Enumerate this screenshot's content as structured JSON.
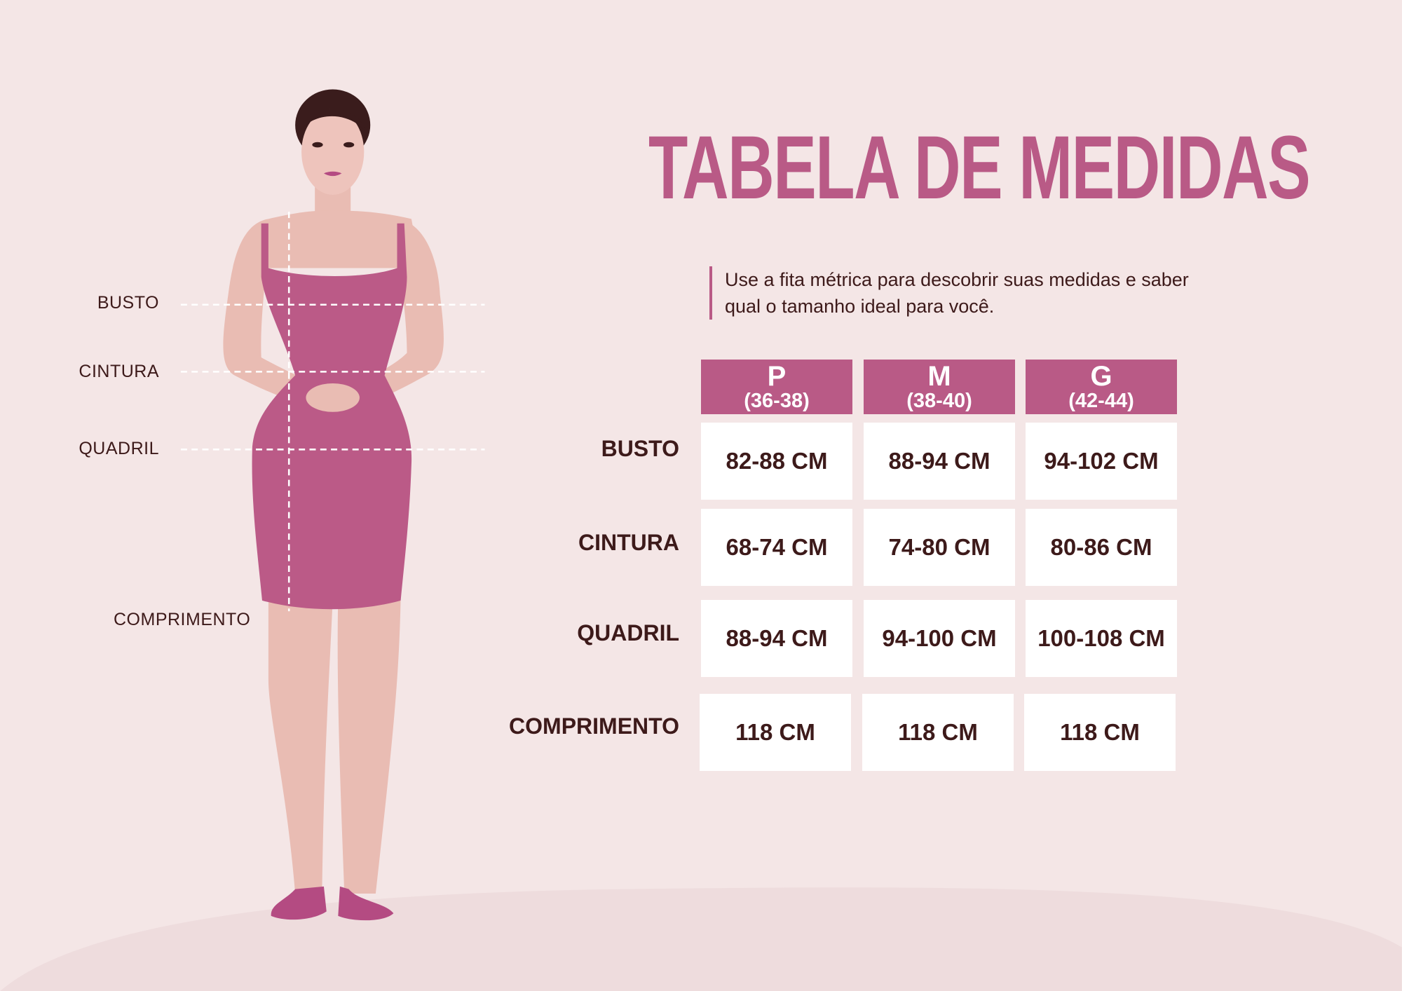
{
  "title": "TABELA DE MEDIDAS",
  "subtitle": "Use a fita métrica para descobrir suas medidas e saber qual o tamanho ideal para você.",
  "colors": {
    "accent": "#b95a86",
    "background": "#f4e6e6",
    "text": "#3d1a1a",
    "cell": "#ffffff"
  },
  "figure_labels": [
    "BUSTO",
    "CINTURA",
    "QUADRIL",
    "COMPRIMENTO"
  ],
  "table": {
    "columns": [
      {
        "size": "P",
        "range": "(36-38)"
      },
      {
        "size": "M",
        "range": "(38-40)"
      },
      {
        "size": "G",
        "range": "(42-44)"
      }
    ],
    "rows": [
      {
        "label": "BUSTO",
        "values": [
          "82-88 CM",
          "88-94 CM",
          "94-102 CM"
        ]
      },
      {
        "label": "CINTURA",
        "values": [
          "68-74 CM",
          "74-80 CM",
          "80-86 CM"
        ]
      },
      {
        "label": "QUADRIL",
        "values": [
          "88-94 CM",
          "94-100 CM",
          "100-108 CM"
        ]
      },
      {
        "label": "COMPRIMENTO",
        "values": [
          "118 CM",
          "118 CM",
          "118 CM"
        ]
      }
    ]
  }
}
